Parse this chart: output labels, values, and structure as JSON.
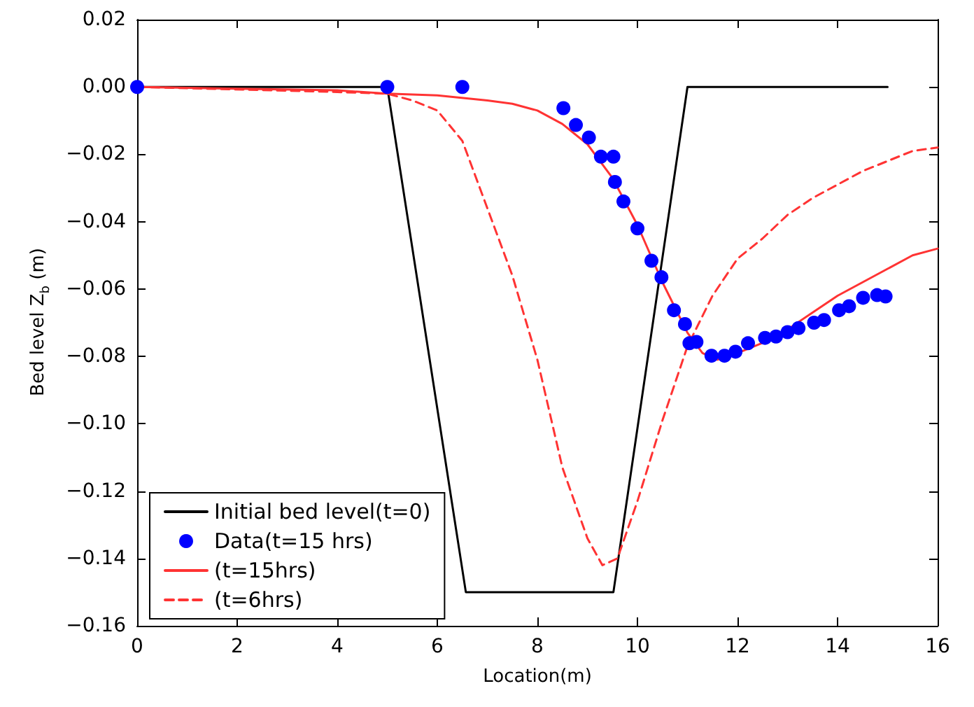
{
  "chart_data": {
    "type": "line",
    "xlabel": "Location(m)",
    "ylabel": "Bed level Z$_{b}$ (m)",
    "xlim": [
      0,
      16
    ],
    "xticks": [
      0,
      2,
      4,
      6,
      8,
      10,
      12,
      14,
      16
    ],
    "ylim": [
      -0.16,
      0.02
    ],
    "yticks": [
      {
        "value": -0.16,
        "label": "−0.16"
      },
      {
        "value": -0.14,
        "label": "−0.14"
      },
      {
        "value": -0.12,
        "label": "−0.12"
      },
      {
        "value": -0.1,
        "label": "−0.10"
      },
      {
        "value": -0.08,
        "label": "−0.08"
      },
      {
        "value": -0.06,
        "label": "−0.06"
      },
      {
        "value": -0.04,
        "label": "−0.04"
      },
      {
        "value": -0.02,
        "label": "−0.02"
      },
      {
        "value": 0,
        "label": "0.00"
      },
      {
        "value": 0.02,
        "label": "0.02"
      }
    ],
    "grid": false,
    "legend": "bottom left",
    "series": [
      {
        "name": "Initial bed level(t=0)",
        "color": "#000000",
        "marker": "none",
        "line_style": "solid",
        "x": [
          0,
          5,
          6.57,
          9.52,
          11.0,
          15
        ],
        "values": [
          0,
          0,
          -0.15,
          -0.15,
          0,
          0
        ]
      },
      {
        "name": "Data(t=15 hrs)",
        "type": "scatter",
        "color": "#0000ff",
        "marker": "circle",
        "x": [
          0,
          5.0,
          6.5,
          8.52,
          8.77,
          9.03,
          9.27,
          9.52,
          9.55,
          9.72,
          10.0,
          10.28,
          10.48,
          10.73,
          10.95,
          11.04,
          11.18,
          11.48,
          11.74,
          11.96,
          12.21,
          12.55,
          12.77,
          13.0,
          13.22,
          13.53,
          13.73,
          14.03,
          14.23,
          14.51,
          14.79,
          14.96
        ],
        "values": [
          0,
          0,
          0,
          -0.0063,
          -0.0113,
          -0.015,
          -0.0207,
          -0.0207,
          -0.0282,
          -0.034,
          -0.042,
          -0.0516,
          -0.0565,
          -0.0663,
          -0.0704,
          -0.0761,
          -0.0757,
          -0.0798,
          -0.0798,
          -0.0786,
          -0.0761,
          -0.0745,
          -0.0741,
          -0.0728,
          -0.0716,
          -0.07,
          -0.0692,
          -0.0663,
          -0.0651,
          -0.0626,
          -0.0618,
          -0.0622
        ]
      },
      {
        "name": "(t=15hrs)",
        "color": "#ff3333",
        "marker": "none",
        "line_style": "solid",
        "x": [
          0,
          2,
          4,
          5,
          6,
          7,
          7.5,
          8,
          8.5,
          9,
          9.5,
          10,
          10.5,
          11,
          11.3,
          11.6,
          12,
          12.5,
          13,
          13.5,
          14,
          14.5,
          15,
          15.5,
          16
        ],
        "values": [
          0,
          -0.0005,
          -0.001,
          -0.002,
          -0.0025,
          -0.004,
          -0.005,
          -0.007,
          -0.011,
          -0.017,
          -0.027,
          -0.041,
          -0.058,
          -0.073,
          -0.079,
          -0.081,
          -0.079,
          -0.076,
          -0.072,
          -0.067,
          -0.062,
          -0.058,
          -0.054,
          -0.05,
          -0.048
        ]
      },
      {
        "name": "(t=6hrs)",
        "color": "#ff3333",
        "marker": "none",
        "line_style": "dashed",
        "x": [
          0,
          4,
          5,
          5.5,
          6,
          6.5,
          7,
          7.5,
          8,
          8.5,
          9,
          9.3,
          9.6,
          10,
          10.5,
          11,
          11.5,
          12,
          12.5,
          13,
          13.5,
          14,
          14.5,
          15,
          15.5,
          16
        ],
        "values": [
          0,
          -0.0015,
          -0.002,
          -0.004,
          -0.007,
          -0.016,
          -0.036,
          -0.056,
          -0.081,
          -0.113,
          -0.134,
          -0.142,
          -0.14,
          -0.123,
          -0.099,
          -0.077,
          -0.062,
          -0.051,
          -0.045,
          -0.038,
          -0.033,
          -0.029,
          -0.025,
          -0.022,
          -0.019,
          -0.018
        ]
      }
    ]
  }
}
